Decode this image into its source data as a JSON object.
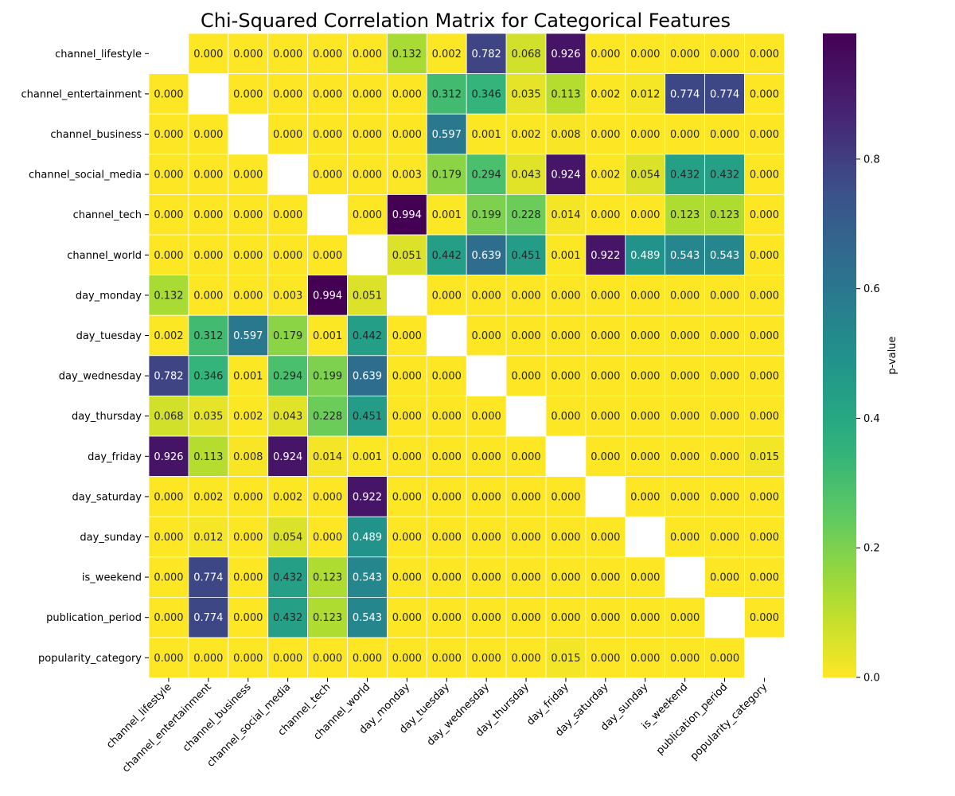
{
  "chart_data": {
    "type": "heatmap",
    "title": "Chi-Squared Correlation Matrix for Categorical Features",
    "rows": [
      "channel_lifestyle",
      "channel_entertainment",
      "channel_business",
      "channel_social_media",
      "channel_tech",
      "channel_world",
      "day_monday",
      "day_tuesday",
      "day_wednesday",
      "day_thursday",
      "day_friday",
      "day_saturday",
      "day_sunday",
      "is_weekend",
      "publication_period",
      "popularity_category"
    ],
    "columns": [
      "channel_lifestyle",
      "channel_entertainment",
      "channel_business",
      "channel_social_media",
      "channel_tech",
      "channel_world",
      "day_monday",
      "day_tuesday",
      "day_wednesday",
      "day_thursday",
      "day_friday",
      "day_saturday",
      "day_sunday",
      "is_weekend",
      "publication_period",
      "popularity_category"
    ],
    "values": [
      [
        null,
        0.0,
        0.0,
        0.0,
        0.0,
        0.0,
        0.132,
        0.002,
        0.782,
        0.068,
        0.926,
        0.0,
        0.0,
        0.0,
        0.0,
        0.0
      ],
      [
        0.0,
        null,
        0.0,
        0.0,
        0.0,
        0.0,
        0.0,
        0.312,
        0.346,
        0.035,
        0.113,
        0.002,
        0.012,
        0.774,
        0.774,
        0.0
      ],
      [
        0.0,
        0.0,
        null,
        0.0,
        0.0,
        0.0,
        0.0,
        0.597,
        0.001,
        0.002,
        0.008,
        0.0,
        0.0,
        0.0,
        0.0,
        0.0
      ],
      [
        0.0,
        0.0,
        0.0,
        null,
        0.0,
        0.0,
        0.003,
        0.179,
        0.294,
        0.043,
        0.924,
        0.002,
        0.054,
        0.432,
        0.432,
        0.0
      ],
      [
        0.0,
        0.0,
        0.0,
        0.0,
        null,
        0.0,
        0.994,
        0.001,
        0.199,
        0.228,
        0.014,
        0.0,
        0.0,
        0.123,
        0.123,
        0.0
      ],
      [
        0.0,
        0.0,
        0.0,
        0.0,
        0.0,
        null,
        0.051,
        0.442,
        0.639,
        0.451,
        0.001,
        0.922,
        0.489,
        0.543,
        0.543,
        0.0
      ],
      [
        0.132,
        0.0,
        0.0,
        0.003,
        0.994,
        0.051,
        null,
        0.0,
        0.0,
        0.0,
        0.0,
        0.0,
        0.0,
        0.0,
        0.0,
        0.0
      ],
      [
        0.002,
        0.312,
        0.597,
        0.179,
        0.001,
        0.442,
        0.0,
        null,
        0.0,
        0.0,
        0.0,
        0.0,
        0.0,
        0.0,
        0.0,
        0.0
      ],
      [
        0.782,
        0.346,
        0.001,
        0.294,
        0.199,
        0.639,
        0.0,
        0.0,
        null,
        0.0,
        0.0,
        0.0,
        0.0,
        0.0,
        0.0,
        0.0
      ],
      [
        0.068,
        0.035,
        0.002,
        0.043,
        0.228,
        0.451,
        0.0,
        0.0,
        0.0,
        null,
        0.0,
        0.0,
        0.0,
        0.0,
        0.0,
        0.0
      ],
      [
        0.926,
        0.113,
        0.008,
        0.924,
        0.014,
        0.001,
        0.0,
        0.0,
        0.0,
        0.0,
        null,
        0.0,
        0.0,
        0.0,
        0.0,
        0.015
      ],
      [
        0.0,
        0.002,
        0.0,
        0.002,
        0.0,
        0.922,
        0.0,
        0.0,
        0.0,
        0.0,
        0.0,
        null,
        0.0,
        0.0,
        0.0,
        0.0
      ],
      [
        0.0,
        0.012,
        0.0,
        0.054,
        0.0,
        0.489,
        0.0,
        0.0,
        0.0,
        0.0,
        0.0,
        0.0,
        null,
        0.0,
        0.0,
        0.0
      ],
      [
        0.0,
        0.774,
        0.0,
        0.432,
        0.123,
        0.543,
        0.0,
        0.0,
        0.0,
        0.0,
        0.0,
        0.0,
        0.0,
        null,
        0.0,
        0.0
      ],
      [
        0.0,
        0.774,
        0.0,
        0.432,
        0.123,
        0.543,
        0.0,
        0.0,
        0.0,
        0.0,
        0.0,
        0.0,
        0.0,
        0.0,
        null,
        0.0
      ],
      [
        0.0,
        0.0,
        0.0,
        0.0,
        0.0,
        0.0,
        0.0,
        0.0,
        0.0,
        0.0,
        0.015,
        0.0,
        0.0,
        0.0,
        0.0,
        null
      ]
    ],
    "colorbar": {
      "label": "p-value",
      "colormap": "viridis_r",
      "vmin": 0.0,
      "vmax": 0.994,
      "ticks": [
        0.0,
        0.2,
        0.4,
        0.6,
        0.8
      ],
      "tick_labels": [
        "0.0",
        "0.2",
        "0.4",
        "0.6",
        "0.8"
      ]
    },
    "value_format": "3 decimals",
    "diagonal": "masked",
    "grid": false
  }
}
